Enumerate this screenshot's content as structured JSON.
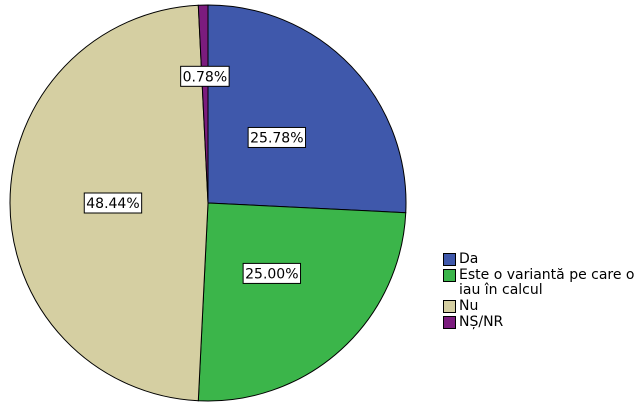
{
  "chart_data": {
    "type": "pie",
    "categories": [
      "Da",
      "Este o variantă pe care o iau în calcul",
      "Nu",
      "NȘ/NR"
    ],
    "values": [
      25.78,
      25.0,
      48.44,
      0.78
    ],
    "value_labels": [
      "25.78%",
      "25.00%",
      "48.44%",
      "0.78%"
    ],
    "colors": [
      "#3f58ab",
      "#3bb54a",
      "#d5cfa2",
      "#7b1c7e"
    ]
  }
}
